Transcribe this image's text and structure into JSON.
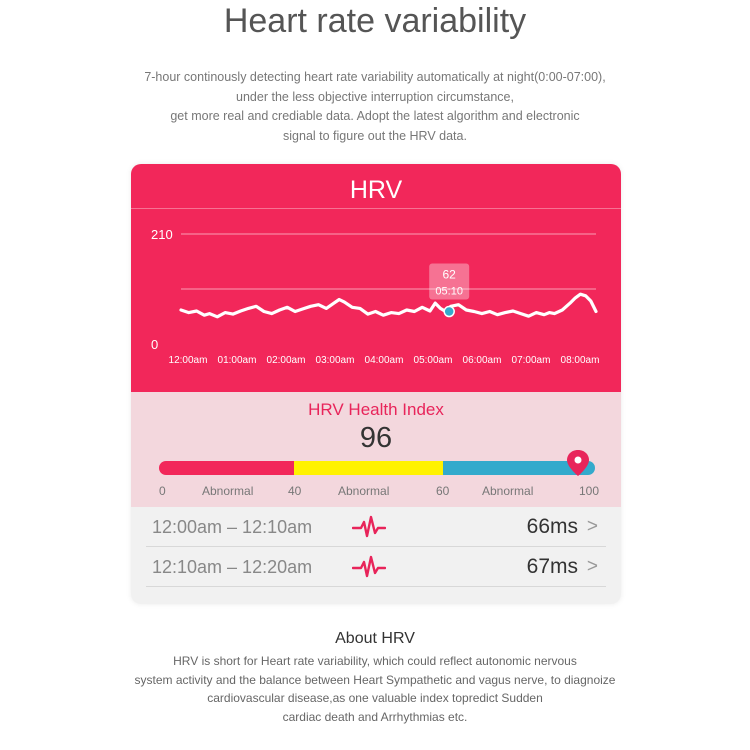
{
  "header": {
    "title": "Heart rate variability",
    "intro_lines": [
      "7-hour continously detecting heart rate variability automatically at night(0:00-07:00),",
      "under the less objective interruption circumstance,",
      "get more real and crediable data. Adopt the latest algorithm and electronic",
      "signal to figure out the HRV data."
    ]
  },
  "hrv_card": {
    "title": "HRV",
    "tooltip_value": "62",
    "tooltip_time": "05:10"
  },
  "chart_data": {
    "type": "line",
    "ylim": [
      0,
      210
    ],
    "y_ticks": [
      "210",
      "0"
    ],
    "x_labels": [
      "12:00am",
      "01:00am",
      "02:00am",
      "03:00am",
      "04:00am",
      "05:00am",
      "06:00am",
      "07:00am",
      "08:00am"
    ],
    "xlim": [
      0,
      8
    ],
    "series": [
      {
        "x": [
          0,
          0.15,
          0.3,
          0.45,
          0.55,
          0.7,
          0.85,
          1.0,
          1.15,
          1.3,
          1.45,
          1.6,
          1.75,
          1.9,
          2.05,
          2.2,
          2.35,
          2.5,
          2.65,
          2.8,
          2.95,
          3.05,
          3.15,
          3.3,
          3.45,
          3.6,
          3.75,
          3.9,
          4.05,
          4.2,
          4.35,
          4.5,
          4.65,
          4.8,
          4.9,
          5.0,
          5.1,
          5.2,
          5.35,
          5.5,
          5.65,
          5.8,
          5.95,
          6.1,
          6.25,
          6.4,
          6.55,
          6.7,
          6.85,
          7.0,
          7.1,
          7.2,
          7.35,
          7.5,
          7.6,
          7.7,
          7.8,
          7.9,
          8.0
        ],
        "values": [
          65,
          60,
          63,
          55,
          58,
          52,
          60,
          57,
          63,
          68,
          72,
          62,
          58,
          65,
          70,
          62,
          67,
          72,
          75,
          68,
          78,
          85,
          80,
          70,
          68,
          57,
          62,
          55,
          60,
          58,
          65,
          62,
          70,
          63,
          78,
          68,
          62,
          72,
          75,
          65,
          62,
          58,
          62,
          56,
          60,
          63,
          58,
          53,
          60,
          56,
          60,
          58,
          65,
          78,
          88,
          95,
          92,
          82,
          62
        ]
      }
    ],
    "grid": true,
    "line_color": "#ffffff",
    "highlight_point": {
      "x": 5.17,
      "y": 62
    },
    "background_color": "#f2275a"
  },
  "health_index": {
    "title": "HRV Health Index",
    "value": "96",
    "pin_fraction": 0.96,
    "scale_numbers": [
      "0",
      "40",
      "60",
      "100"
    ],
    "segment_labels": [
      "Abnormal",
      "Abnormal",
      "Abnormal"
    ],
    "colors": {
      "red": "#f2275a",
      "yellow": "#fff200",
      "blue": "#33aacc",
      "pin": "#e8245a"
    }
  },
  "records": [
    {
      "range": "12:00am – 12:10am",
      "value": "66ms",
      "icon": "heartbeat-icon"
    },
    {
      "range": "12:10am – 12:20am",
      "value": "67ms",
      "icon": "heartbeat-icon"
    }
  ],
  "chevron": ">",
  "about": {
    "title": "About HRV",
    "lines": [
      "HRV is short for Heart rate variability, which could reflect autonomic nervous",
      "system activity and the balance between Heart Sympathetic and vagus nerve, to diagnoize",
      "cardiovascular disease,as one valuable index topredict Sudden",
      "cardiac death and Arrhythmias etc."
    ]
  }
}
